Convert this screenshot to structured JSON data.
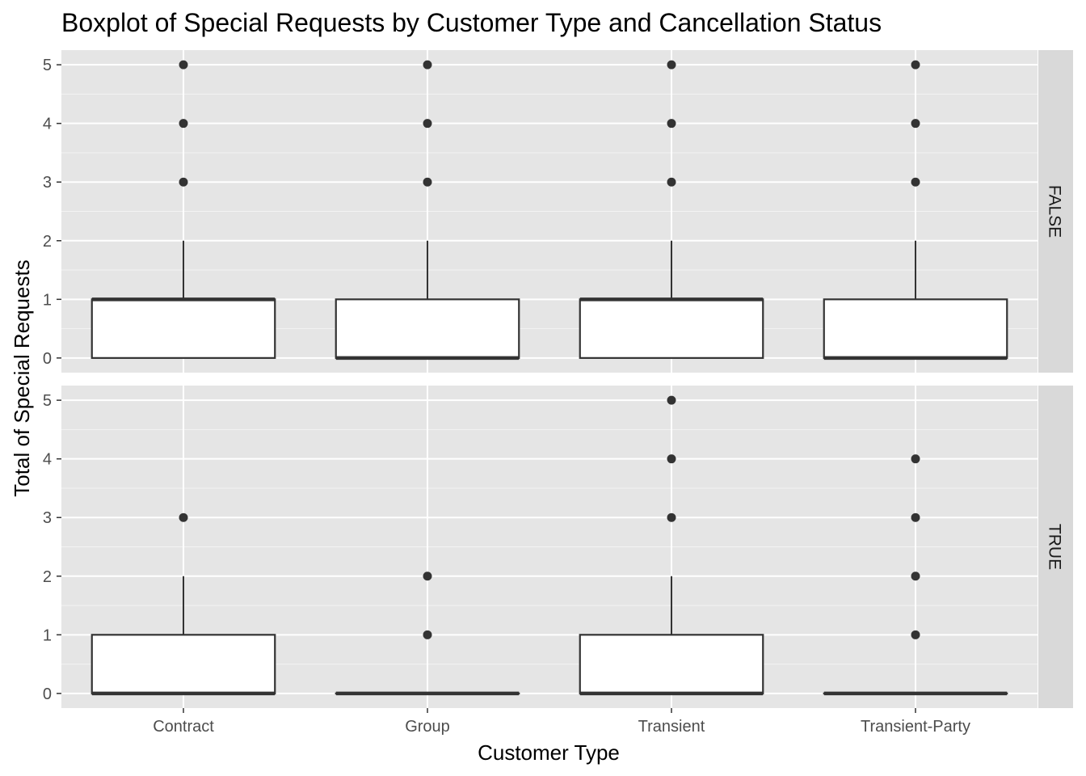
{
  "chart_data": {
    "type": "boxplot",
    "title": "Boxplot of Special Requests by Customer Type and Cancellation Status",
    "xlabel": "Customer Type",
    "ylabel": "Total of Special Requests",
    "categories": [
      "Contract",
      "Group",
      "Transient",
      "Transient-Party"
    ],
    "y_ticks": [
      0,
      1,
      2,
      3,
      4,
      5
    ],
    "ylim": [
      -0.25,
      5.25
    ],
    "grid": true,
    "facets": [
      {
        "label": "FALSE",
        "boxes": [
          {
            "category": "Contract",
            "q1": 0,
            "median": 1,
            "q3": 1,
            "whisker_low": 0,
            "whisker_high": 2,
            "outliers": [
              3,
              4,
              5
            ]
          },
          {
            "category": "Group",
            "q1": 0,
            "median": 0,
            "q3": 1,
            "whisker_low": 0,
            "whisker_high": 2,
            "outliers": [
              3,
              4,
              5
            ]
          },
          {
            "category": "Transient",
            "q1": 0,
            "median": 1,
            "q3": 1,
            "whisker_low": 0,
            "whisker_high": 2,
            "outliers": [
              3,
              4,
              5
            ]
          },
          {
            "category": "Transient-Party",
            "q1": 0,
            "median": 0,
            "q3": 1,
            "whisker_low": 0,
            "whisker_high": 2,
            "outliers": [
              3,
              4,
              5
            ]
          }
        ]
      },
      {
        "label": "TRUE",
        "boxes": [
          {
            "category": "Contract",
            "q1": 0,
            "median": 0,
            "q3": 1,
            "whisker_low": 0,
            "whisker_high": 2,
            "outliers": [
              3
            ]
          },
          {
            "category": "Group",
            "q1": 0,
            "median": 0,
            "q3": 0,
            "whisker_low": 0,
            "whisker_high": 0,
            "outliers": [
              1,
              2
            ]
          },
          {
            "category": "Transient",
            "q1": 0,
            "median": 0,
            "q3": 1,
            "whisker_low": 0,
            "whisker_high": 2,
            "outliers": [
              3,
              4,
              5
            ]
          },
          {
            "category": "Transient-Party",
            "q1": 0,
            "median": 0,
            "q3": 0,
            "whisker_low": 0,
            "whisker_high": 0,
            "outliers": [
              1,
              2,
              3,
              4
            ]
          }
        ]
      }
    ],
    "colors": {
      "panel_background": "#e5e5e5",
      "grid_major": "#ffffff",
      "strip_background": "#d9d9d9",
      "box_fill": "#ffffff",
      "box_line": "#333333",
      "outlier": "#333333"
    }
  }
}
